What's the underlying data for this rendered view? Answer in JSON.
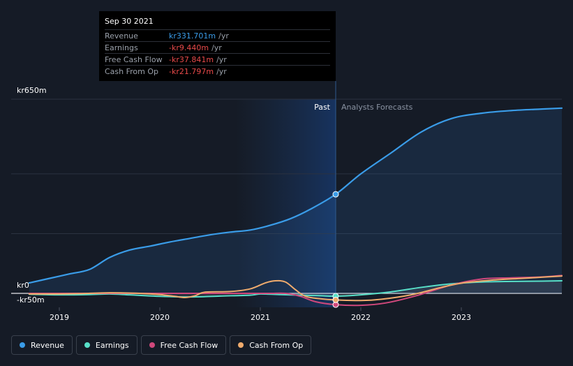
{
  "chart_data": {
    "type": "line",
    "x_label_ticks": [
      "2019",
      "2020",
      "2021",
      "2022",
      "2023"
    ],
    "y_ticks": [
      "kr650m",
      "kr0",
      "-kr50m"
    ],
    "ylim": [
      -50,
      650
    ],
    "past_label": "Past",
    "forecast_label": "Analysts Forecasts",
    "divider_x": 2021.75,
    "series": [
      {
        "name": "Revenue",
        "color": "#3a9ce8",
        "x": [
          2018.7,
          2018.9,
          2019.1,
          2019.3,
          2019.5,
          2019.7,
          2019.9,
          2020.1,
          2020.3,
          2020.5,
          2020.7,
          2020.9,
          2021.1,
          2021.3,
          2021.5,
          2021.75,
          2022.0,
          2022.3,
          2022.6,
          2022.9,
          2023.2,
          2023.5,
          2023.8,
          2024.0
        ],
        "values": [
          35,
          50,
          65,
          80,
          120,
          145,
          158,
          172,
          184,
          196,
          205,
          212,
          228,
          250,
          282,
          331.7,
          400,
          470,
          540,
          585,
          603,
          612,
          617,
          620
        ]
      },
      {
        "name": "Earnings",
        "color": "#58e0c9",
        "x": [
          2018.7,
          2019.0,
          2019.3,
          2019.5,
          2019.7,
          2020.0,
          2020.3,
          2020.6,
          2020.9,
          2021.0,
          2021.2,
          2021.4,
          2021.6,
          2021.75,
          2022.0,
          2022.3,
          2022.6,
          2022.9,
          2023.2,
          2023.5,
          2023.8,
          2024.0
        ],
        "values": [
          -3,
          -5,
          -4,
          -2,
          -5,
          -10,
          -12,
          -9,
          -6,
          -2,
          -4,
          -6,
          -8,
          -9.4,
          -5,
          5,
          20,
          32,
          38,
          40,
          41,
          42
        ]
      },
      {
        "name": "Free Cash Flow",
        "color": "#d0487c",
        "x": [
          2018.7,
          2019.0,
          2019.5,
          2019.9,
          2020.2,
          2020.4,
          2020.7,
          2020.95,
          2021.1,
          2021.25,
          2021.4,
          2021.55,
          2021.75,
          2022.0,
          2022.25,
          2022.55,
          2022.9,
          2023.2,
          2023.5,
          2023.8,
          2024.0
        ],
        "values": [
          0,
          0,
          0,
          0,
          0,
          0,
          0,
          0,
          0,
          0,
          -10,
          -28,
          -37.8,
          -40,
          -32,
          -8,
          28,
          48,
          52,
          55,
          60
        ]
      },
      {
        "name": "Cash From Op",
        "color": "#efab6d",
        "x": [
          2018.7,
          2019.0,
          2019.2,
          2019.5,
          2019.8,
          2020.0,
          2020.15,
          2020.25,
          2020.35,
          2020.45,
          2020.7,
          2020.9,
          2021.05,
          2021.15,
          2021.25,
          2021.35,
          2021.45,
          2021.6,
          2021.75,
          2022.0,
          2022.2,
          2022.5,
          2022.8,
          2023.0,
          2023.3,
          2023.6,
          2023.8,
          2024.0
        ],
        "values": [
          -2,
          -2,
          -1,
          2,
          0,
          -4,
          -10,
          -14,
          -8,
          4,
          6,
          15,
          35,
          42,
          38,
          12,
          -10,
          -18,
          -21.8,
          -24,
          -20,
          -5,
          20,
          34,
          44,
          50,
          54,
          58
        ]
      }
    ]
  },
  "tooltip": {
    "date": "Sep 30 2021",
    "rows": [
      {
        "label": "Revenue",
        "value": "kr331.701m",
        "unit": "/yr",
        "color": "#3a9ce8"
      },
      {
        "label": "Earnings",
        "value": "-kr9.440m",
        "unit": "/yr",
        "color": "#e84a4a"
      },
      {
        "label": "Free Cash Flow",
        "value": "-kr37.841m",
        "unit": "/yr",
        "color": "#e84a4a"
      },
      {
        "label": "Cash From Op",
        "value": "-kr21.797m",
        "unit": "/yr",
        "color": "#e84a4a"
      }
    ]
  },
  "legend": [
    {
      "label": "Revenue",
      "color": "#3a9ce8"
    },
    {
      "label": "Earnings",
      "color": "#58e0c9"
    },
    {
      "label": "Free Cash Flow",
      "color": "#d0487c"
    },
    {
      "label": "Cash From Op",
      "color": "#efab6d"
    }
  ]
}
